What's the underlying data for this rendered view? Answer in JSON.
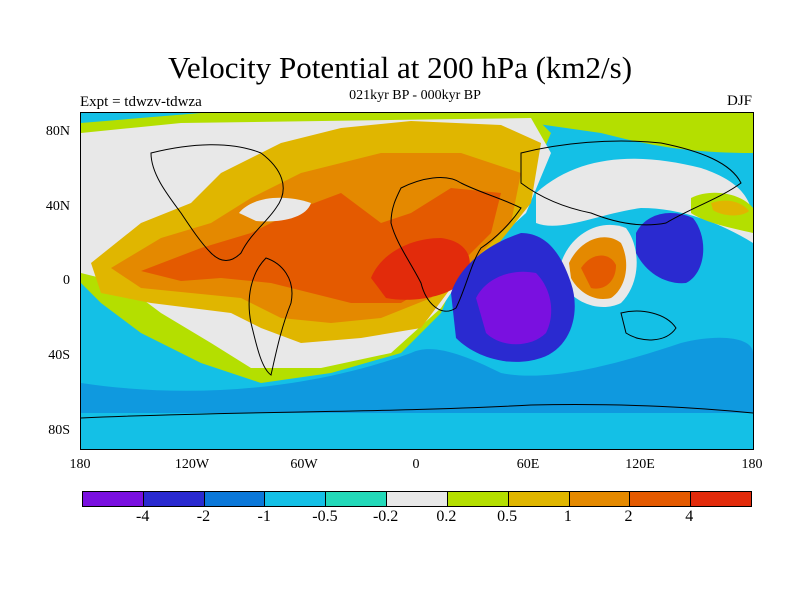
{
  "title": "Velocity Potential at 200 hPa (km2/s)",
  "subtitle": "021kyr BP - 000kyr BP",
  "left_label": "Expt = tdwzv-tdwza",
  "right_label": "DJF",
  "lat_ticks": [
    "80N",
    "40N",
    "0",
    "40S",
    "80S"
  ],
  "lon_ticks": [
    "180",
    "120W",
    "60W",
    "0",
    "60E",
    "120E",
    "180"
  ],
  "colorbar": {
    "colors": [
      "#7a10e0",
      "#2a2ad0",
      "#0b78d9",
      "#14c0e6",
      "#23d9b9",
      "#e8e8e8",
      "#b4df00",
      "#e0b600",
      "#e48900",
      "#e45a00",
      "#e22b0b"
    ],
    "labels": [
      "-4",
      "-2",
      "-1",
      "-0.5",
      "-0.2",
      "0.2",
      "0.5",
      "1",
      "2",
      "4"
    ]
  }
}
